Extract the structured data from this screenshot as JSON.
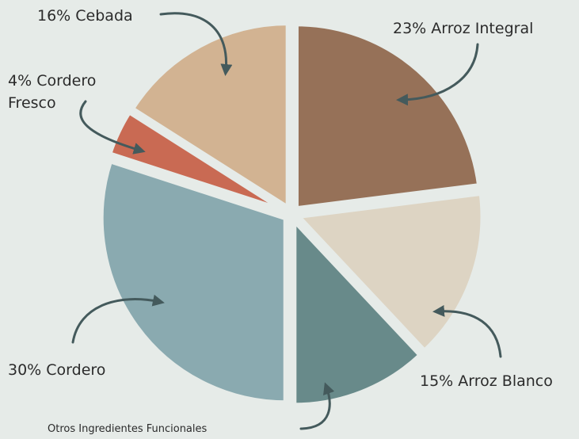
{
  "chart_data": {
    "type": "pie",
    "categories": [
      "Arroz Integral",
      "Arroz Blanco",
      "Otros Ingredientes Funcionales",
      "Cordero",
      "Cordero Fresco",
      "Cebada"
    ],
    "values": [
      23,
      15,
      12,
      30,
      4,
      16
    ],
    "value_labels": [
      "23%",
      "15%",
      null,
      "30%",
      "4%",
      "16%"
    ],
    "colors": [
      "#967158",
      "#ddd4c3",
      "#688a8a",
      "#8aaab0",
      "#c96a53",
      "#d2b392"
    ]
  }
}
